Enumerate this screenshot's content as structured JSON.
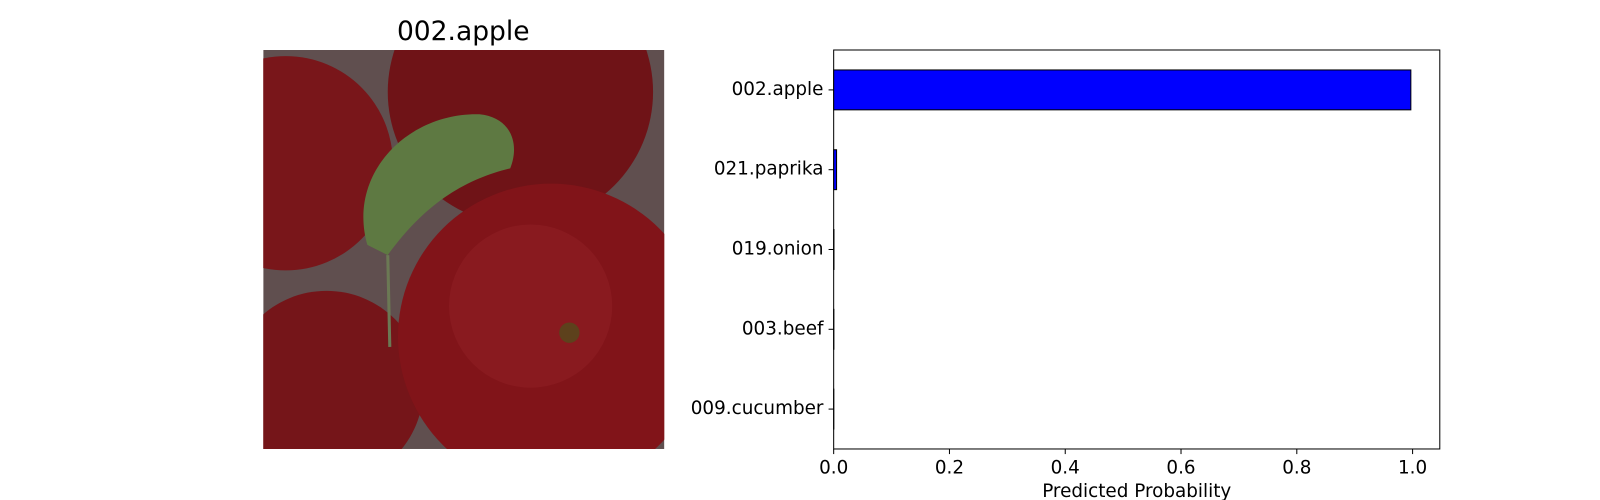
{
  "title": "002.apple",
  "chart_data": {
    "type": "bar",
    "orientation": "horizontal",
    "categories": [
      "002.apple",
      "021.paprika",
      "019.onion",
      "003.beef",
      "009.cucumber"
    ],
    "values": [
      0.997,
      0.005,
      0.0005,
      0.0003,
      0.0002
    ],
    "color": "#0000ff",
    "edgecolor": "#000000",
    "xlabel": "Predicted Probability",
    "xlim": [
      0,
      1.047
    ],
    "xticks": [
      {
        "value": 0,
        "label": "0.0"
      },
      {
        "value": 0.2,
        "label": "0.2"
      },
      {
        "value": 0.4,
        "label": "0.4"
      },
      {
        "value": 0.6,
        "label": "0.6"
      },
      {
        "value": 0.8,
        "label": "0.8"
      },
      {
        "value": 1,
        "label": "1.0"
      }
    ],
    "grid": false
  }
}
